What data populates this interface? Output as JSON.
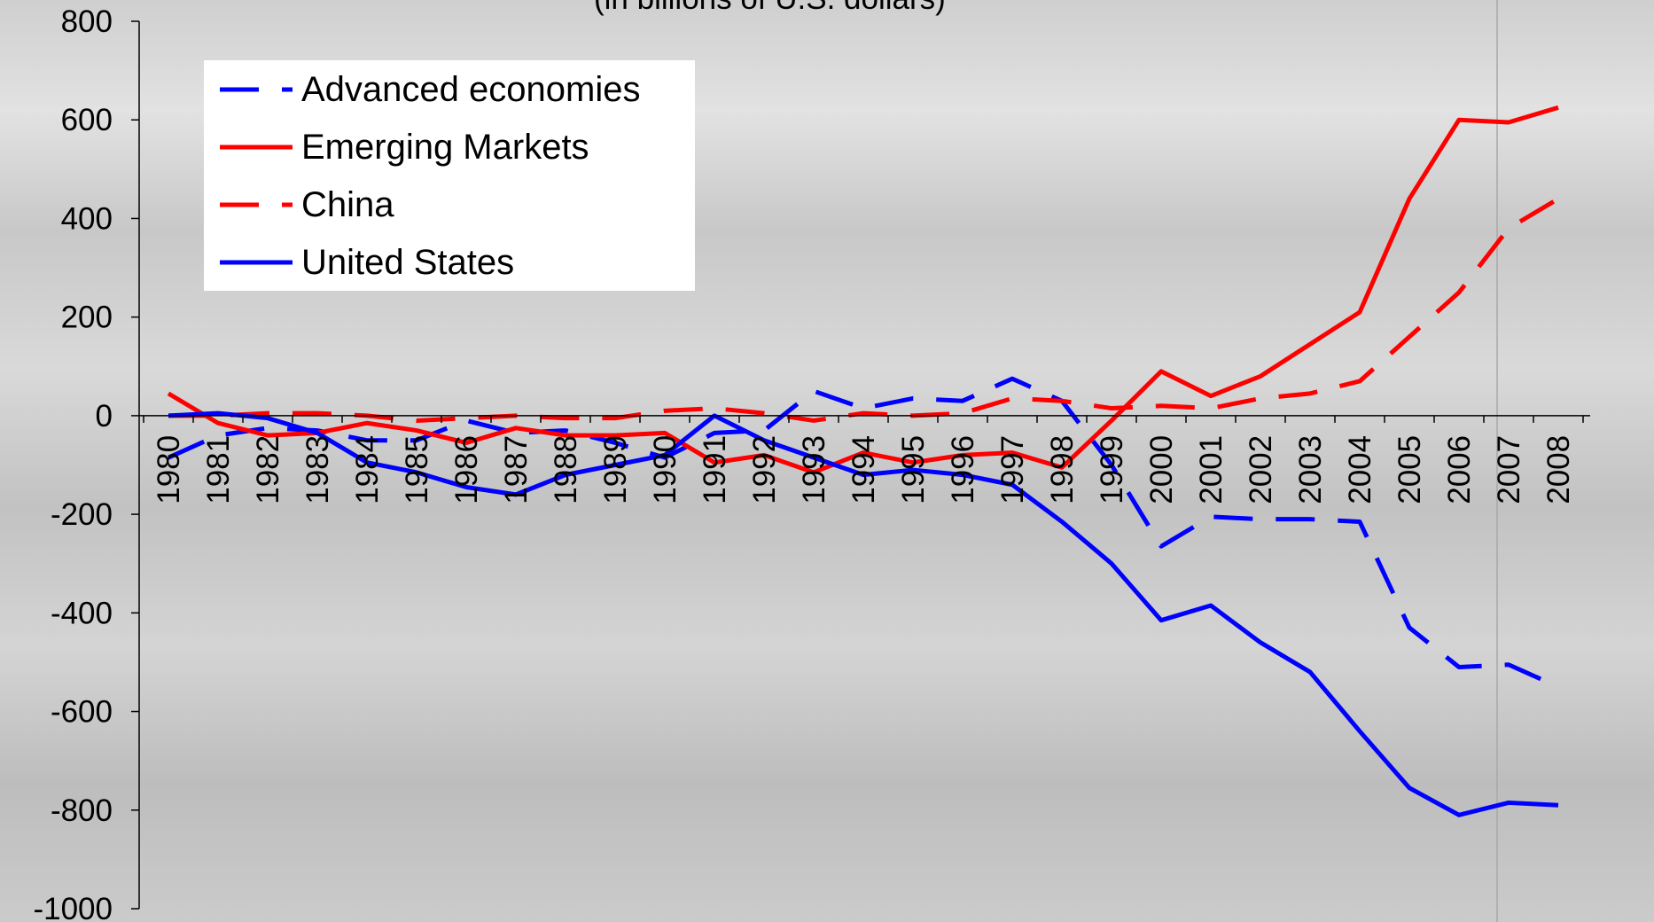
{
  "chart_data": {
    "type": "line",
    "title": "",
    "subtitle_fragment": "(in billions of U.S. dollars)",
    "xlabel": "",
    "ylabel": "",
    "ylim": [
      -1000,
      800
    ],
    "yticks": [
      -1000,
      -800,
      -600,
      -400,
      -200,
      0,
      200,
      400,
      600,
      800
    ],
    "x": [
      "1980",
      "1981",
      "1982",
      "1983",
      "1984",
      "1985",
      "1986",
      "1987",
      "1988",
      "1989",
      "1990",
      "1991",
      "1992",
      "1993",
      "1994",
      "1995",
      "1996",
      "1997",
      "1998",
      "1999",
      "2000",
      "2001",
      "2002",
      "2003",
      "2004",
      "2005",
      "2006",
      "2007",
      "2008"
    ],
    "grid": false,
    "legend_position": "top-left",
    "series": [
      {
        "name": "Advanced economies",
        "color": "#0000ff",
        "style": "dashed",
        "values": [
          -85,
          -40,
          -25,
          -30,
          -50,
          -50,
          -10,
          -35,
          -30,
          -55,
          -85,
          -35,
          -30,
          50,
          15,
          35,
          30,
          75,
          30,
          -100,
          -265,
          -205,
          -210,
          -210,
          -215,
          -430,
          -510,
          -505,
          -550
        ]
      },
      {
        "name": "Emerging Markets",
        "color": "#ff0000",
        "style": "solid",
        "values": [
          45,
          -15,
          -40,
          -35,
          -15,
          -30,
          -55,
          -25,
          -40,
          -40,
          -35,
          -95,
          -80,
          -115,
          -75,
          -95,
          -80,
          -75,
          -105,
          -10,
          90,
          40,
          80,
          145,
          210,
          440,
          600,
          595,
          625
        ]
      },
      {
        "name": "China",
        "color": "#ff0000",
        "style": "dashed",
        "values": [
          0,
          0,
          5,
          5,
          0,
          -10,
          -5,
          0,
          -5,
          -5,
          10,
          15,
          5,
          -10,
          5,
          0,
          5,
          35,
          30,
          15,
          20,
          15,
          35,
          45,
          70,
          160,
          250,
          380,
          440
        ]
      },
      {
        "name": "United States",
        "color": "#0000ff",
        "style": "solid",
        "values": [
          0,
          5,
          -5,
          -35,
          -95,
          -115,
          -145,
          -160,
          -120,
          -100,
          -80,
          0,
          -50,
          -85,
          -120,
          -110,
          -120,
          -140,
          -215,
          -300,
          -415,
          -385,
          -460,
          -520,
          -640,
          -755,
          -810,
          -785,
          -790
        ]
      }
    ]
  },
  "legend": {
    "items": [
      {
        "label": "Advanced economies",
        "color": "#0000ff",
        "style": "dashed"
      },
      {
        "label": "Emerging Markets",
        "color": "#ff0000",
        "style": "solid"
      },
      {
        "label": "China",
        "color": "#ff0000",
        "style": "dashed"
      },
      {
        "label": "United States",
        "color": "#0000ff",
        "style": "solid"
      }
    ]
  }
}
